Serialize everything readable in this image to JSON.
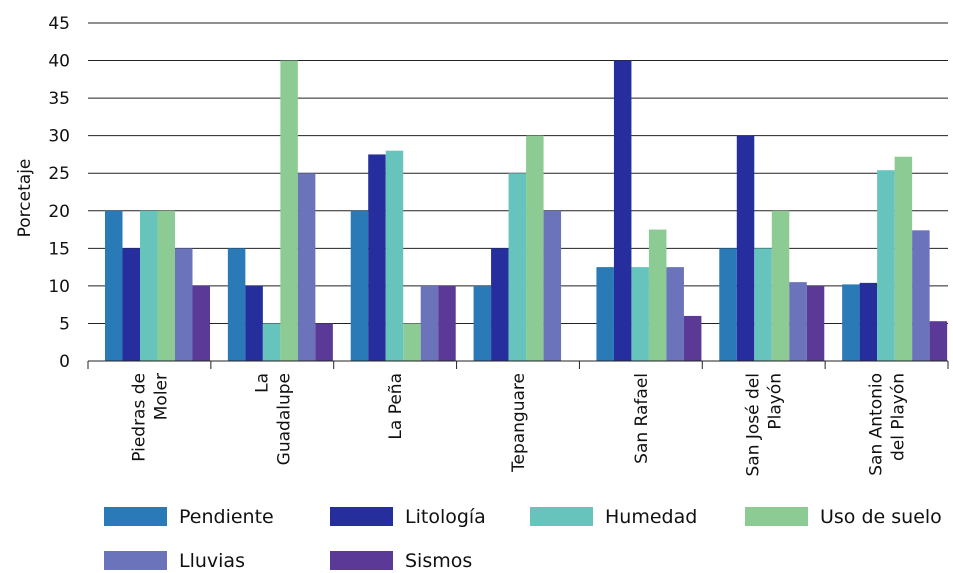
{
  "chart_data": {
    "type": "bar",
    "title": "",
    "xlabel": "",
    "ylabel": "Porcetaje",
    "ylim": [
      0,
      45
    ],
    "yticks": [
      0,
      5,
      10,
      15,
      20,
      25,
      30,
      35,
      40,
      45
    ],
    "grid": "horizontal",
    "legend_position": "bottom",
    "categories": [
      [
        "Piedras de",
        "Moler"
      ],
      [
        "La",
        "Guadalupe"
      ],
      [
        "La Peña"
      ],
      [
        "Tepanguare"
      ],
      [
        "San Rafael"
      ],
      [
        "San José del",
        "Playón"
      ],
      [
        "San Antonio",
        "del Playón"
      ]
    ],
    "series": [
      {
        "name": "Pendiente",
        "color": "#2a7ab8",
        "values": [
          20,
          15,
          20,
          10,
          12.5,
          15,
          10.2
        ]
      },
      {
        "name": "Litología",
        "color": "#252e9c",
        "values": [
          15,
          10,
          27.5,
          15,
          40,
          30,
          10.4
        ]
      },
      {
        "name": "Humedad",
        "color": "#66c4bd",
        "values": [
          20,
          5,
          28,
          25,
          12.5,
          15,
          25.4
        ]
      },
      {
        "name": "Uso de suelo",
        "color": "#8ccc94",
        "values": [
          20,
          40,
          5,
          30,
          17.5,
          20,
          27.2
        ]
      },
      {
        "name": "Lluvias",
        "color": "#6b73bb",
        "values": [
          15,
          25,
          10,
          20,
          12.5,
          10.5,
          17.4
        ]
      },
      {
        "name": "Sismos",
        "color": "#5b3a97",
        "values": [
          10,
          5,
          10,
          0,
          6,
          10,
          5.3
        ]
      }
    ]
  }
}
